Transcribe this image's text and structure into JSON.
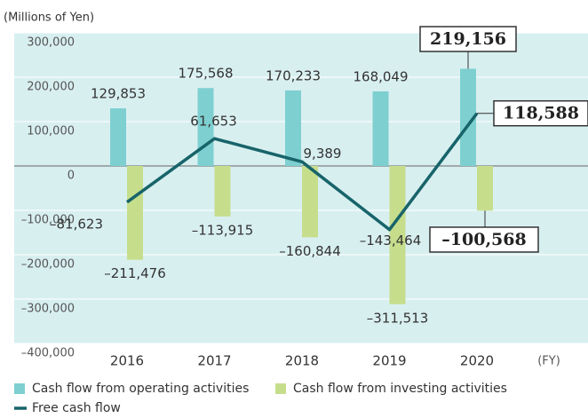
{
  "chart_data": {
    "type": "bar_line",
    "unit_label": "(Millions of Yen)",
    "x_unit_label": "(FY)",
    "categories": [
      "2016",
      "2017",
      "2018",
      "2019",
      "2020"
    ],
    "series": [
      {
        "name": "Cash flow from operating activities",
        "color": "#7ecfd0",
        "kind": "bar",
        "values": [
          129853,
          175568,
          170233,
          168049,
          219156
        ],
        "value_labels": [
          "129,853",
          "175,568",
          "170,233",
          "168,049",
          "219,156"
        ]
      },
      {
        "name": "Cash flow from investing activities",
        "color": "#c6de8c",
        "kind": "bar",
        "values": [
          -211476,
          -113915,
          -160844,
          -311513,
          -100568
        ],
        "value_labels": [
          "–211,476",
          "–113,915",
          "–160,844",
          "–311,513",
          "–100,568"
        ]
      },
      {
        "name": "Free cash flow",
        "color": "#17646a",
        "kind": "line",
        "values": [
          -81623,
          61653,
          9389,
          -143464,
          118588
        ],
        "value_labels": [
          "–81,623",
          "61,653",
          "9,389",
          "–143,464",
          "118,588"
        ]
      }
    ],
    "ylim": [
      -400000,
      300000
    ],
    "yticks": [
      {
        "value": 300000,
        "label": "300,000"
      },
      {
        "value": 200000,
        "label": "200,000"
      },
      {
        "value": 100000,
        "label": "100,000"
      },
      0,
      {
        "value": -100000,
        "label": "–100,000"
      },
      {
        "value": -200000,
        "label": "–200,000"
      },
      {
        "value": -300000,
        "label": "–300,000"
      },
      {
        "value": -400000,
        "label": "–400,000"
      }
    ],
    "grid": true,
    "background": "#d8eff0"
  }
}
